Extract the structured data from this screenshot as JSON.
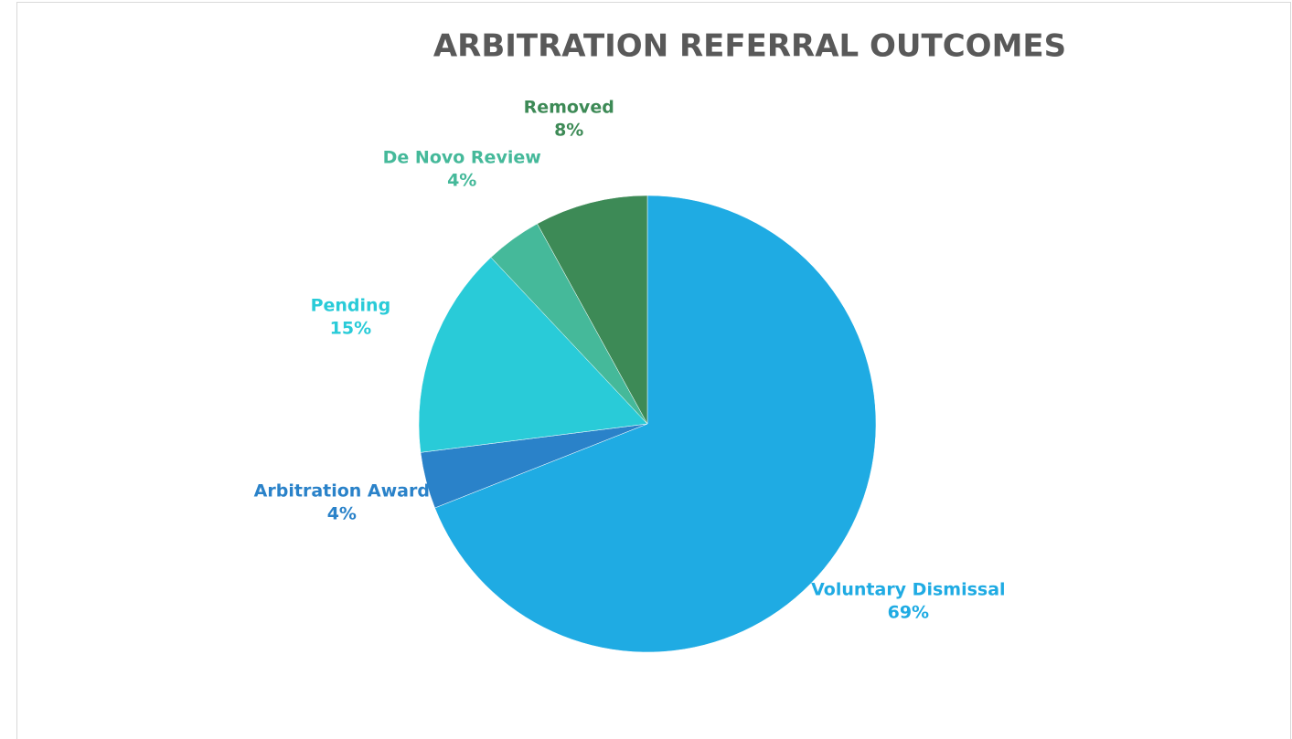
{
  "chart_data": {
    "type": "pie",
    "title": "ARBITRATION REFERRAL OUTCOMES",
    "categories": [
      "Voluntary Dismissal",
      "Arbitration Award",
      "Pending",
      "De Novo Review",
      "Removed"
    ],
    "values": [
      69,
      4,
      15,
      4,
      8
    ],
    "value_labels": [
      "69%",
      "4%",
      "15%",
      "4%",
      "8%"
    ],
    "colors": [
      "#1fabe3",
      "#2a82c9",
      "#29cbd8",
      "#45b99a",
      "#3d8a56"
    ]
  }
}
